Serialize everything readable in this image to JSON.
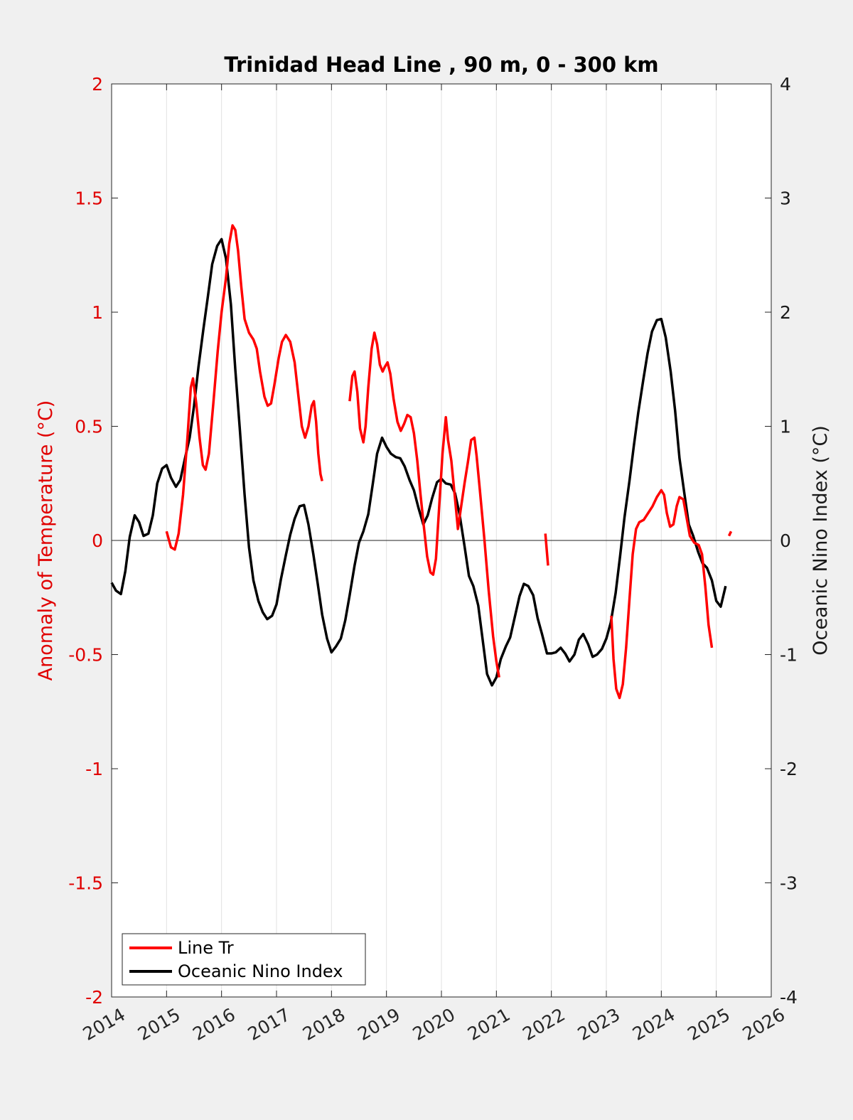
{
  "chart_data": {
    "type": "line",
    "title": "Trinidad Head Line , 90 m, 0 - 300 km",
    "ylabel_left": "Anomaly of Temperature (°C)",
    "ylabel_right": "Oceanic Nino Index (°C)",
    "xlim": [
      2014,
      2026
    ],
    "ylim_left": [
      -2,
      2
    ],
    "ylim_right": [
      -4,
      4
    ],
    "x_ticks": [
      2014,
      2015,
      2016,
      2017,
      2018,
      2019,
      2020,
      2021,
      2022,
      2023,
      2024,
      2025,
      2026
    ],
    "x_tick_labels": [
      "2014",
      "2015",
      "2016",
      "2017",
      "2018",
      "2019",
      "2020",
      "2021",
      "2022",
      "2023",
      "2024",
      "2025",
      "2026"
    ],
    "y_left_ticks": [
      -2,
      -1.5,
      -1,
      -0.5,
      0,
      0.5,
      1,
      1.5,
      2
    ],
    "y_left_tick_labels": [
      "-2",
      "-1.5",
      "-1",
      "-0.5",
      "0",
      "0.5",
      "1",
      "1.5",
      "2"
    ],
    "y_right_ticks": [
      -4,
      -3,
      -2,
      -1,
      0,
      1,
      2,
      3,
      4
    ],
    "y_right_tick_labels": [
      "-4",
      "-3",
      "-2",
      "-1",
      "0",
      "1",
      "2",
      "3",
      "4"
    ],
    "grid": "vertical",
    "zero_line": true,
    "legend": {
      "position": "bottom-left",
      "entries": [
        {
          "label": "Line Tr",
          "color": "#ff0000"
        },
        {
          "label": "Oceanic Nino Index",
          "color": "#000000"
        }
      ]
    },
    "colors": {
      "left_axis": "#e00000",
      "right_axis": "#1a1a1a",
      "line_tr": "#ff0000",
      "oni": "#000000"
    },
    "series": [
      {
        "name": "Line Tr",
        "axis": "left",
        "color": "#ff0000",
        "segments": [
          [
            [
              2015.0,
              0.04
            ],
            [
              2015.08,
              -0.03
            ],
            [
              2015.15,
              -0.04
            ],
            [
              2015.22,
              0.03
            ],
            [
              2015.3,
              0.2
            ],
            [
              2015.38,
              0.45
            ],
            [
              2015.44,
              0.67
            ],
            [
              2015.48,
              0.71
            ],
            [
              2015.54,
              0.6
            ],
            [
              2015.6,
              0.45
            ],
            [
              2015.66,
              0.33
            ],
            [
              2015.71,
              0.31
            ],
            [
              2015.77,
              0.38
            ],
            [
              2015.85,
              0.6
            ],
            [
              2015.93,
              0.83
            ],
            [
              2016.0,
              1.0
            ],
            [
              2016.08,
              1.15
            ],
            [
              2016.14,
              1.3
            ],
            [
              2016.2,
              1.38
            ],
            [
              2016.25,
              1.36
            ],
            [
              2016.3,
              1.27
            ],
            [
              2016.36,
              1.11
            ],
            [
              2016.42,
              0.97
            ],
            [
              2016.5,
              0.91
            ],
            [
              2016.58,
              0.88
            ],
            [
              2016.64,
              0.84
            ],
            [
              2016.7,
              0.74
            ],
            [
              2016.78,
              0.63
            ],
            [
              2016.84,
              0.59
            ],
            [
              2016.9,
              0.6
            ],
            [
              2016.96,
              0.68
            ],
            [
              2017.04,
              0.8
            ],
            [
              2017.1,
              0.87
            ],
            [
              2017.17,
              0.9
            ],
            [
              2017.25,
              0.87
            ],
            [
              2017.33,
              0.78
            ],
            [
              2017.4,
              0.63
            ],
            [
              2017.46,
              0.5
            ],
            [
              2017.52,
              0.45
            ],
            [
              2017.58,
              0.5
            ],
            [
              2017.64,
              0.59
            ],
            [
              2017.68,
              0.61
            ],
            [
              2017.72,
              0.52
            ],
            [
              2017.76,
              0.38
            ],
            [
              2017.8,
              0.29
            ],
            [
              2017.83,
              0.26
            ]
          ],
          [
            [
              2018.33,
              0.61
            ],
            [
              2018.38,
              0.72
            ],
            [
              2018.42,
              0.74
            ],
            [
              2018.47,
              0.65
            ],
            [
              2018.52,
              0.49
            ],
            [
              2018.58,
              0.43
            ],
            [
              2018.62,
              0.5
            ],
            [
              2018.67,
              0.67
            ],
            [
              2018.73,
              0.84
            ],
            [
              2018.78,
              0.91
            ],
            [
              2018.83,
              0.86
            ],
            [
              2018.88,
              0.77
            ],
            [
              2018.93,
              0.74
            ],
            [
              2018.97,
              0.76
            ],
            [
              2019.02,
              0.78
            ],
            [
              2019.07,
              0.73
            ],
            [
              2019.13,
              0.62
            ],
            [
              2019.2,
              0.52
            ],
            [
              2019.26,
              0.48
            ],
            [
              2019.32,
              0.51
            ],
            [
              2019.38,
              0.55
            ],
            [
              2019.44,
              0.54
            ],
            [
              2019.5,
              0.47
            ],
            [
              2019.56,
              0.35
            ],
            [
              2019.62,
              0.2
            ],
            [
              2019.68,
              0.06
            ],
            [
              2019.74,
              -0.07
            ],
            [
              2019.8,
              -0.14
            ],
            [
              2019.85,
              -0.15
            ],
            [
              2019.9,
              -0.08
            ],
            [
              2019.96,
              0.15
            ],
            [
              2020.02,
              0.38
            ],
            [
              2020.08,
              0.54
            ],
            [
              2020.12,
              0.44
            ],
            [
              2020.18,
              0.35
            ],
            [
              2020.24,
              0.2
            ],
            [
              2020.3,
              0.05
            ],
            [
              2020.36,
              0.15
            ],
            [
              2020.42,
              0.25
            ],
            [
              2020.48,
              0.34
            ],
            [
              2020.54,
              0.44
            ],
            [
              2020.6,
              0.45
            ],
            [
              2020.64,
              0.37
            ],
            [
              2020.7,
              0.22
            ],
            [
              2020.78,
              0.01
            ],
            [
              2020.86,
              -0.22
            ],
            [
              2020.94,
              -0.42
            ],
            [
              2021.0,
              -0.53
            ],
            [
              2021.05,
              -0.6
            ]
          ],
          [
            [
              2021.89,
              0.03
            ],
            [
              2021.94,
              -0.11
            ]
          ],
          [
            [
              2023.09,
              -0.33
            ],
            [
              2023.13,
              -0.52
            ],
            [
              2023.18,
              -0.65
            ],
            [
              2023.24,
              -0.69
            ],
            [
              2023.3,
              -0.63
            ],
            [
              2023.36,
              -0.47
            ],
            [
              2023.42,
              -0.26
            ],
            [
              2023.48,
              -0.06
            ],
            [
              2023.54,
              0.05
            ],
            [
              2023.6,
              0.08
            ],
            [
              2023.68,
              0.09
            ],
            [
              2023.76,
              0.12
            ],
            [
              2023.84,
              0.15
            ],
            [
              2023.92,
              0.19
            ],
            [
              2024.0,
              0.22
            ],
            [
              2024.05,
              0.2
            ],
            [
              2024.1,
              0.12
            ],
            [
              2024.16,
              0.06
            ],
            [
              2024.22,
              0.07
            ],
            [
              2024.28,
              0.15
            ],
            [
              2024.33,
              0.19
            ],
            [
              2024.4,
              0.18
            ],
            [
              2024.46,
              0.1
            ],
            [
              2024.52,
              0.02
            ],
            [
              2024.6,
              -0.01
            ],
            [
              2024.68,
              -0.02
            ],
            [
              2024.74,
              -0.06
            ],
            [
              2024.8,
              -0.2
            ],
            [
              2024.86,
              -0.37
            ],
            [
              2024.92,
              -0.47
            ]
          ],
          [
            [
              2025.23,
              0.02
            ],
            [
              2025.27,
              0.04
            ]
          ]
        ]
      },
      {
        "name": "Oceanic Nino Index",
        "axis": "right",
        "color": "#000000",
        "points": [
          [
            2014.0,
            -0.37
          ],
          [
            2014.08,
            -0.44
          ],
          [
            2014.17,
            -0.47
          ],
          [
            2014.25,
            -0.27
          ],
          [
            2014.33,
            0.03
          ],
          [
            2014.42,
            0.22
          ],
          [
            2014.5,
            0.16
          ],
          [
            2014.58,
            0.04
          ],
          [
            2014.67,
            0.06
          ],
          [
            2014.75,
            0.22
          ],
          [
            2014.83,
            0.5
          ],
          [
            2014.92,
            0.63
          ],
          [
            2015.0,
            0.66
          ],
          [
            2015.08,
            0.55
          ],
          [
            2015.17,
            0.47
          ],
          [
            2015.25,
            0.53
          ],
          [
            2015.33,
            0.71
          ],
          [
            2015.42,
            0.9
          ],
          [
            2015.5,
            1.18
          ],
          [
            2015.58,
            1.52
          ],
          [
            2015.67,
            1.85
          ],
          [
            2015.75,
            2.13
          ],
          [
            2015.83,
            2.42
          ],
          [
            2015.92,
            2.58
          ],
          [
            2016.0,
            2.64
          ],
          [
            2016.08,
            2.47
          ],
          [
            2016.17,
            2.07
          ],
          [
            2016.25,
            1.5
          ],
          [
            2016.33,
            0.99
          ],
          [
            2016.42,
            0.4
          ],
          [
            2016.5,
            -0.06
          ],
          [
            2016.58,
            -0.35
          ],
          [
            2016.67,
            -0.53
          ],
          [
            2016.75,
            -0.63
          ],
          [
            2016.83,
            -0.69
          ],
          [
            2016.92,
            -0.66
          ],
          [
            2017.0,
            -0.56
          ],
          [
            2017.08,
            -0.34
          ],
          [
            2017.17,
            -0.13
          ],
          [
            2017.25,
            0.05
          ],
          [
            2017.33,
            0.19
          ],
          [
            2017.42,
            0.3
          ],
          [
            2017.5,
            0.31
          ],
          [
            2017.58,
            0.14
          ],
          [
            2017.67,
            -0.12
          ],
          [
            2017.75,
            -0.38
          ],
          [
            2017.83,
            -0.65
          ],
          [
            2017.92,
            -0.86
          ],
          [
            2018.0,
            -0.98
          ],
          [
            2018.08,
            -0.93
          ],
          [
            2018.17,
            -0.86
          ],
          [
            2018.25,
            -0.7
          ],
          [
            2018.33,
            -0.48
          ],
          [
            2018.42,
            -0.22
          ],
          [
            2018.5,
            -0.02
          ],
          [
            2018.58,
            0.08
          ],
          [
            2018.67,
            0.23
          ],
          [
            2018.75,
            0.49
          ],
          [
            2018.83,
            0.76
          ],
          [
            2018.92,
            0.9
          ],
          [
            2019.0,
            0.82
          ],
          [
            2019.08,
            0.76
          ],
          [
            2019.17,
            0.73
          ],
          [
            2019.25,
            0.72
          ],
          [
            2019.33,
            0.65
          ],
          [
            2019.42,
            0.53
          ],
          [
            2019.5,
            0.44
          ],
          [
            2019.58,
            0.29
          ],
          [
            2019.67,
            0.14
          ],
          [
            2019.75,
            0.22
          ],
          [
            2019.83,
            0.37
          ],
          [
            2019.92,
            0.51
          ],
          [
            2020.0,
            0.54
          ],
          [
            2020.08,
            0.5
          ],
          [
            2020.17,
            0.49
          ],
          [
            2020.25,
            0.41
          ],
          [
            2020.33,
            0.23
          ],
          [
            2020.42,
            -0.05
          ],
          [
            2020.5,
            -0.31
          ],
          [
            2020.58,
            -0.4
          ],
          [
            2020.67,
            -0.57
          ],
          [
            2020.75,
            -0.87
          ],
          [
            2020.83,
            -1.17
          ],
          [
            2020.92,
            -1.27
          ],
          [
            2021.0,
            -1.2
          ],
          [
            2021.08,
            -1.04
          ],
          [
            2021.17,
            -0.93
          ],
          [
            2021.25,
            -0.85
          ],
          [
            2021.33,
            -0.68
          ],
          [
            2021.42,
            -0.49
          ],
          [
            2021.5,
            -0.38
          ],
          [
            2021.58,
            -0.4
          ],
          [
            2021.67,
            -0.48
          ],
          [
            2021.75,
            -0.68
          ],
          [
            2021.83,
            -0.82
          ],
          [
            2021.92,
            -0.99
          ],
          [
            2022.0,
            -0.99
          ],
          [
            2022.08,
            -0.98
          ],
          [
            2022.17,
            -0.94
          ],
          [
            2022.25,
            -0.99
          ],
          [
            2022.33,
            -1.06
          ],
          [
            2022.42,
            -1.0
          ],
          [
            2022.5,
            -0.87
          ],
          [
            2022.58,
            -0.82
          ],
          [
            2022.67,
            -0.91
          ],
          [
            2022.75,
            -1.02
          ],
          [
            2022.83,
            -1.0
          ],
          [
            2022.92,
            -0.95
          ],
          [
            2023.0,
            -0.86
          ],
          [
            2023.08,
            -0.72
          ],
          [
            2023.17,
            -0.46
          ],
          [
            2023.25,
            -0.14
          ],
          [
            2023.33,
            0.2
          ],
          [
            2023.42,
            0.52
          ],
          [
            2023.5,
            0.83
          ],
          [
            2023.58,
            1.12
          ],
          [
            2023.67,
            1.4
          ],
          [
            2023.75,
            1.64
          ],
          [
            2023.83,
            1.83
          ],
          [
            2023.92,
            1.93
          ],
          [
            2024.0,
            1.94
          ],
          [
            2024.08,
            1.78
          ],
          [
            2024.17,
            1.48
          ],
          [
            2024.25,
            1.14
          ],
          [
            2024.33,
            0.72
          ],
          [
            2024.42,
            0.41
          ],
          [
            2024.5,
            0.14
          ],
          [
            2024.58,
            0.04
          ],
          [
            2024.67,
            -0.1
          ],
          [
            2024.75,
            -0.2
          ],
          [
            2024.83,
            -0.24
          ],
          [
            2024.92,
            -0.35
          ],
          [
            2025.0,
            -0.53
          ],
          [
            2025.08,
            -0.58
          ],
          [
            2025.17,
            -0.4
          ]
        ]
      }
    ]
  }
}
